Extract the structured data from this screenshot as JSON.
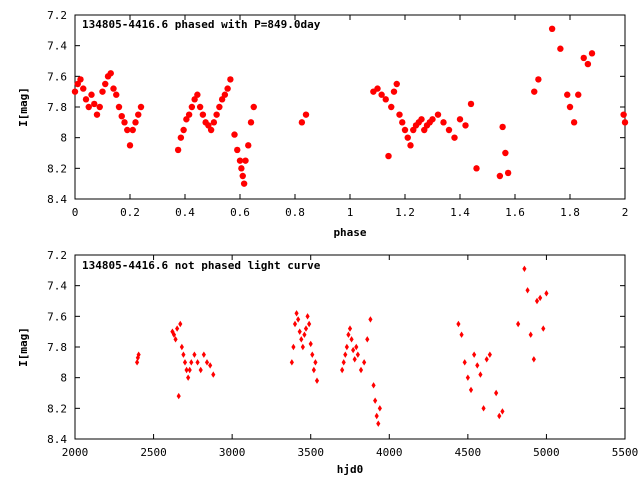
{
  "chart_data": [
    {
      "type": "scatter",
      "title": "134805-4416.6 phased with P=849.0day",
      "xlabel": "phase",
      "ylabel": "I[mag]",
      "xlim": [
        0,
        2
      ],
      "ylim": [
        8.4,
        7.2
      ],
      "y_inverted": true,
      "x_ticks": [
        0,
        0.2,
        0.4,
        0.6,
        0.8,
        1,
        1.2,
        1.4,
        1.6,
        1.8,
        2
      ],
      "x_tick_labels": [
        "0",
        "0.2",
        "0.4",
        "0.6",
        "0.8",
        "1",
        "1.2",
        "1.4",
        "1.6",
        "1.8",
        "2"
      ],
      "y_ticks": [
        7.2,
        7.4,
        7.6,
        7.8,
        8,
        8.2,
        8.4
      ],
      "y_tick_labels": [
        "7.2",
        "7.4",
        "7.6",
        "7.8",
        "8",
        "8.2",
        "8.4"
      ],
      "marker": "filled circle",
      "color": "#ff0000",
      "grid": false,
      "series": [
        {
          "x": [
            0.0,
            0.01,
            0.02,
            0.03,
            0.04,
            0.05,
            0.06,
            0.07,
            0.08,
            0.09,
            0.1,
            0.11,
            0.12,
            0.13,
            0.14,
            0.15,
            0.16,
            0.17,
            0.18,
            0.19,
            0.2,
            0.21,
            0.22,
            0.23,
            0.24,
            0.375,
            0.385,
            0.395,
            0.405,
            0.415,
            0.425,
            0.435,
            0.445,
            0.455,
            0.465,
            0.475,
            0.485,
            0.495,
            0.505,
            0.515,
            0.525,
            0.535,
            0.545,
            0.555,
            0.565,
            0.58,
            0.59,
            0.6,
            0.605,
            0.61,
            0.615,
            0.62,
            0.63,
            0.64,
            0.65,
            0.825,
            0.84,
            1.085,
            1.1,
            1.115,
            1.13,
            1.14,
            1.15,
            1.16,
            1.17,
            1.18,
            1.19,
            1.2,
            1.21,
            1.22,
            1.23,
            1.24,
            1.25,
            1.26,
            1.27,
            1.28,
            1.29,
            1.3,
            1.32,
            1.34,
            1.36,
            1.38,
            1.4,
            1.42,
            1.44,
            1.46,
            1.545,
            1.555,
            1.565,
            1.575,
            1.67,
            1.685,
            1.735,
            1.765,
            1.79,
            1.8,
            1.815,
            1.83,
            1.85,
            1.865,
            1.88,
            1.995,
            2.0
          ],
          "y": [
            7.7,
            7.65,
            7.62,
            7.68,
            7.75,
            7.8,
            7.72,
            7.78,
            7.85,
            7.8,
            7.7,
            7.65,
            7.6,
            7.58,
            7.68,
            7.72,
            7.8,
            7.86,
            7.9,
            7.95,
            8.05,
            7.95,
            7.9,
            7.85,
            7.8,
            8.08,
            8.0,
            7.95,
            7.88,
            7.85,
            7.8,
            7.75,
            7.72,
            7.8,
            7.85,
            7.9,
            7.92,
            7.95,
            7.9,
            7.85,
            7.8,
            7.75,
            7.72,
            7.68,
            7.62,
            7.98,
            8.08,
            8.15,
            8.2,
            8.25,
            8.3,
            8.15,
            8.05,
            7.9,
            7.8,
            7.9,
            7.85,
            7.7,
            7.68,
            7.72,
            7.75,
            8.12,
            7.8,
            7.7,
            7.65,
            7.85,
            7.9,
            7.95,
            8.0,
            8.05,
            7.95,
            7.92,
            7.9,
            7.88,
            7.95,
            7.92,
            7.9,
            7.88,
            7.85,
            7.9,
            7.95,
            8.0,
            7.88,
            7.92,
            7.78,
            8.2,
            8.25,
            7.93,
            8.1,
            8.23,
            7.7,
            7.62,
            7.29,
            7.42,
            7.72,
            7.8,
            7.9,
            7.72,
            7.48,
            7.52,
            7.45,
            7.85,
            7.9
          ]
        }
      ]
    },
    {
      "type": "scatter",
      "title": "134805-4416.6 not phased light curve",
      "xlabel": "hjd0",
      "ylabel": "I[mag]",
      "xlim": [
        2000,
        5500
      ],
      "ylim": [
        8.4,
        7.2
      ],
      "y_inverted": true,
      "x_ticks": [
        2000,
        2500,
        3000,
        3500,
        4000,
        4500,
        5000,
        5500
      ],
      "x_tick_labels": [
        "2000",
        "2500",
        "3000",
        "3500",
        "4000",
        "4500",
        "5000",
        "5500"
      ],
      "y_ticks": [
        7.2,
        7.4,
        7.6,
        7.8,
        8,
        8.2,
        8.4
      ],
      "y_tick_labels": [
        "7.2",
        "7.4",
        "7.6",
        "7.8",
        "8",
        "8.2",
        "8.4"
      ],
      "marker": "small filled diamond",
      "color": "#ff0000",
      "grid": false,
      "series": [
        {
          "x": [
            2395,
            2400,
            2405,
            2620,
            2630,
            2640,
            2650,
            2660,
            2670,
            2680,
            2690,
            2700,
            2710,
            2720,
            2730,
            2740,
            2760,
            2780,
            2800,
            2820,
            2840,
            2860,
            2880,
            3380,
            3390,
            3400,
            3410,
            3420,
            3430,
            3440,
            3450,
            3460,
            3470,
            3480,
            3490,
            3500,
            3510,
            3520,
            3530,
            3540,
            3700,
            3710,
            3720,
            3730,
            3740,
            3750,
            3760,
            3770,
            3780,
            3790,
            3800,
            3820,
            3840,
            3860,
            3880,
            3900,
            3910,
            3920,
            3930,
            3940,
            4440,
            4460,
            4480,
            4500,
            4520,
            4540,
            4560,
            4580,
            4600,
            4620,
            4640,
            4680,
            4700,
            4720,
            4820,
            4860,
            4880,
            4900,
            4920,
            4940,
            4960,
            4980,
            5000
          ],
          "y": [
            7.9,
            7.87,
            7.85,
            7.7,
            7.72,
            7.75,
            7.68,
            8.12,
            7.65,
            7.8,
            7.85,
            7.9,
            7.95,
            8.0,
            7.95,
            7.9,
            7.85,
            7.9,
            7.95,
            7.85,
            7.9,
            7.92,
            7.98,
            7.9,
            7.8,
            7.65,
            7.58,
            7.62,
            7.7,
            7.75,
            7.8,
            7.72,
            7.68,
            7.6,
            7.65,
            7.78,
            7.85,
            7.95,
            7.9,
            8.02,
            7.95,
            7.9,
            7.85,
            7.8,
            7.72,
            7.68,
            7.75,
            7.82,
            7.88,
            7.8,
            7.85,
            7.95,
            7.9,
            7.75,
            7.62,
            8.05,
            8.15,
            8.25,
            8.3,
            8.2,
            7.65,
            7.72,
            7.9,
            8.0,
            8.08,
            7.85,
            7.92,
            7.98,
            8.2,
            7.88,
            7.85,
            8.1,
            8.25,
            8.22,
            7.65,
            7.29,
            7.43,
            7.72,
            7.88,
            7.5,
            7.48,
            7.68,
            7.45
          ]
        }
      ]
    }
  ]
}
